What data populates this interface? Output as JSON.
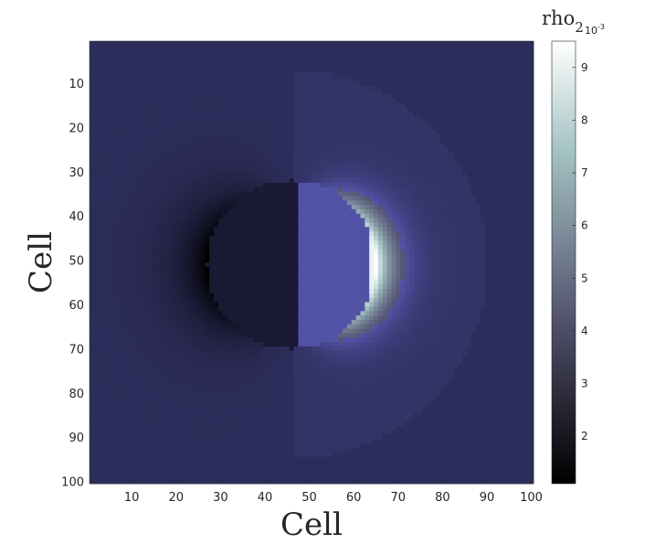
{
  "chart_data": {
    "type": "heatmap",
    "xlabel": "Cell",
    "ylabel": "Cell",
    "x_ticks": [
      10,
      20,
      30,
      40,
      50,
      60,
      70,
      80,
      90,
      100
    ],
    "y_ticks": [
      10,
      20,
      30,
      40,
      50,
      60,
      70,
      80,
      90,
      100
    ],
    "xlim": [
      1,
      100
    ],
    "ylim": [
      1,
      100
    ],
    "y_axis_direction": "top-to-bottom",
    "grid": false,
    "colormap": "bone",
    "colorbar": {
      "title": "rho",
      "title_subscript": "2",
      "scale_exponent_label": "10",
      "scale_exponent_power": "-3",
      "scale_factor": 0.001,
      "ticks": [
        2,
        3,
        4,
        5,
        6,
        7,
        8,
        9
      ],
      "range": [
        1.1,
        9.5
      ],
      "placement": "right"
    },
    "field": {
      "background": 2.8,
      "dark_sphere_center": [
        46,
        51
      ],
      "dark_sphere_radius": 19,
      "dark_sphere_value": 2.05,
      "bright_lens_value": 4.2,
      "contact_x": 48,
      "rim_peak_value": 9.5,
      "rim_position_x": 73,
      "dark_crescent_min_value": 1.1,
      "dark_crescent_position_x": 28,
      "outer_halo_radius": 44,
      "outer_halo_value": 3.0
    }
  }
}
